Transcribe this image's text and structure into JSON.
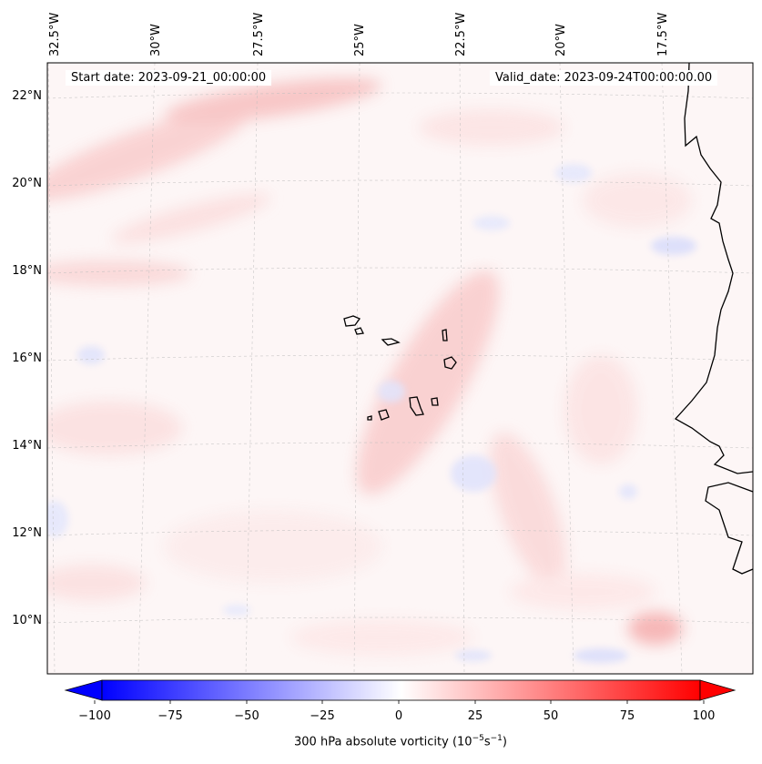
{
  "map": {
    "start_date": "Start date: 2023-09-21_00:00:00",
    "valid_date": "Valid_date: 2023-09-24T00:00:00.00",
    "lon_labels": [
      "32.5°W",
      "30°W",
      "27.5°W",
      "25°W",
      "22.5°W",
      "20°W",
      "17.5°W"
    ],
    "lat_labels": [
      "22°N",
      "20°N",
      "18°N",
      "16°N",
      "14°N",
      "12°N",
      "10°N"
    ],
    "gridlines": true,
    "coastline_color": "#000000",
    "field_colors": {
      "negative": "#0000ff",
      "neutral": "#ffffff",
      "positive": "#ff0000"
    }
  },
  "colorbar": {
    "ticks": [
      "−100",
      "−75",
      "−50",
      "−25",
      "0",
      "25",
      "50",
      "75",
      "100"
    ],
    "range": [
      -100,
      100
    ],
    "extend": "both",
    "label_prefix": "300 hPa absolute vorticity (10",
    "label_exp1": "−5",
    "label_mid": "s",
    "label_exp2": "−1",
    "label_suffix": ")"
  }
}
